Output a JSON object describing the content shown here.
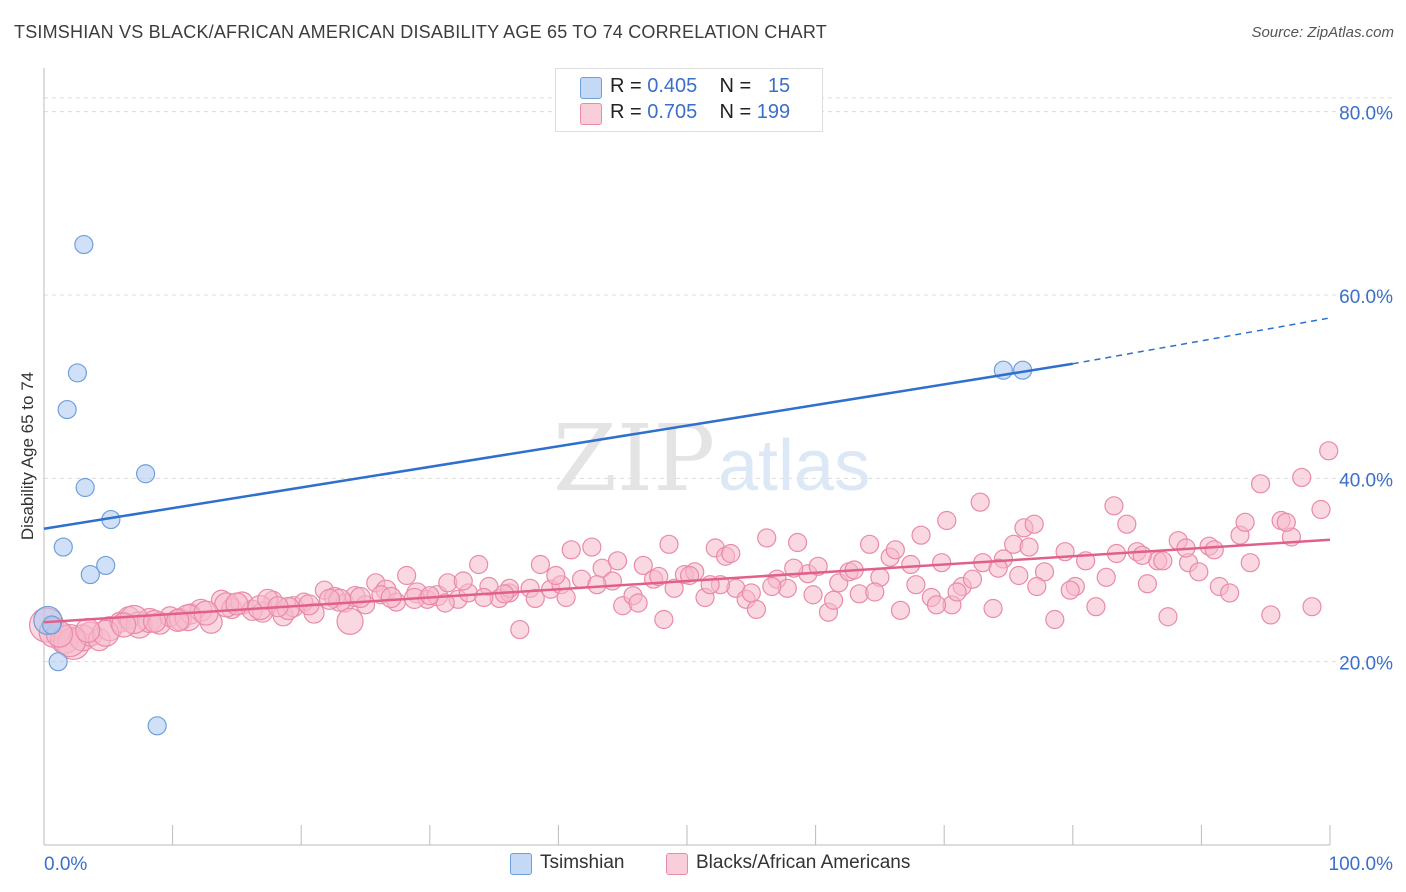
{
  "header": {
    "title": "TSIMSHIAN VS BLACK/AFRICAN AMERICAN DISABILITY AGE 65 TO 74 CORRELATION CHART",
    "source": "Source: ZipAtlas.com"
  },
  "watermark": {
    "zip": "ZIP",
    "atlas": "atlas"
  },
  "legend_top": {
    "rows": [
      {
        "r_label": "R =",
        "r_value": "0.405",
        "n_label": "N =",
        "n_value": "15",
        "color": "#a9c8f0"
      },
      {
        "r_label": "R =",
        "r_value": "0.705",
        "n_label": "N =",
        "n_value": "199",
        "color": "#f5b8cb"
      }
    ]
  },
  "chart_data": {
    "type": "scatter",
    "title": "TSIMSHIAN VS BLACK/AFRICAN AMERICAN DISABILITY AGE 65 TO 74 CORRELATION CHART",
    "xlabel": "",
    "ylabel": "Disability Age 65 to 74",
    "xlim": [
      0,
      100
    ],
    "ylim": [
      0,
      84
    ],
    "x_tick_labels": [
      "0.0%",
      "100.0%"
    ],
    "y_tick_labels": [
      "20.0%",
      "40.0%",
      "60.0%",
      "80.0%"
    ],
    "y_ticks": [
      20,
      40,
      60,
      80
    ],
    "grid": true,
    "legend_position": "bottom",
    "series": [
      {
        "name": "Tsimshian",
        "color": "#a9c8f0",
        "stroke": "#6f9fdb",
        "trend_color": "#2f6fce",
        "trend": {
          "x0": 0,
          "y0": 34.5,
          "x1": 80,
          "y1": 52.5,
          "dashed_to_x": 100,
          "dashed_to_y": 57.5
        },
        "points": [
          [
            0.3,
            24.5,
            14
          ],
          [
            3.1,
            65.5,
            9
          ],
          [
            2.6,
            51.5,
            9
          ],
          [
            1.8,
            47.5,
            9
          ],
          [
            3.2,
            39.0,
            9
          ],
          [
            7.9,
            40.5,
            9
          ],
          [
            5.2,
            35.5,
            9
          ],
          [
            1.5,
            32.5,
            9
          ],
          [
            4.8,
            30.5,
            9
          ],
          [
            3.6,
            29.5,
            9
          ],
          [
            1.1,
            20.0,
            9
          ],
          [
            8.8,
            13.0,
            9
          ],
          [
            74.6,
            51.8,
            9
          ],
          [
            76.1,
            51.8,
            9
          ],
          [
            0.6,
            24.0,
            9
          ]
        ]
      },
      {
        "name": "Blacks/African Americans",
        "color": "#f5b8cb",
        "stroke": "#e98aa8",
        "trend_color": "#e0608a",
        "trend": {
          "x0": 0,
          "y0": 24.3,
          "x1": 100,
          "y1": 33.3
        },
        "points": [
          [
            0.2,
            24.0,
            17
          ],
          [
            0.8,
            23.2,
            15
          ],
          [
            1.6,
            22.4,
            14
          ],
          [
            2.3,
            22.0,
            16
          ],
          [
            3.0,
            22.6,
            13
          ],
          [
            3.6,
            23.0,
            12
          ],
          [
            4.3,
            22.4,
            11
          ],
          [
            5.1,
            23.6,
            12
          ],
          [
            5.9,
            24.3,
            10
          ],
          [
            6.6,
            24.8,
            11
          ],
          [
            7.4,
            24.0,
            13
          ],
          [
            8.2,
            24.5,
            12
          ],
          [
            9.0,
            24.2,
            11
          ],
          [
            9.8,
            24.9,
            10
          ],
          [
            10.6,
            24.6,
            11
          ],
          [
            11.4,
            25.2,
            10
          ],
          [
            12.2,
            25.6,
            11
          ],
          [
            13.0,
            24.3,
            11
          ],
          [
            13.8,
            26.7,
            10
          ],
          [
            14.6,
            25.8,
            10
          ],
          [
            15.4,
            26.4,
            11
          ],
          [
            16.2,
            25.6,
            10
          ],
          [
            17.0,
            25.4,
            10
          ],
          [
            17.8,
            26.7,
            9
          ],
          [
            18.6,
            25.0,
            10
          ],
          [
            19.4,
            26.0,
            10
          ],
          [
            20.2,
            26.5,
            9
          ],
          [
            21.0,
            25.3,
            10
          ],
          [
            21.8,
            27.8,
            9
          ],
          [
            22.6,
            27.0,
            10
          ],
          [
            23.4,
            26.4,
            9
          ],
          [
            24.2,
            27.1,
            10
          ],
          [
            25.0,
            26.2,
            9
          ],
          [
            25.8,
            28.6,
            9
          ],
          [
            26.6,
            27.8,
            10
          ],
          [
            27.4,
            26.5,
            9
          ],
          [
            28.2,
            29.4,
            9
          ],
          [
            29.0,
            27.5,
            10
          ],
          [
            29.8,
            26.8,
            9
          ],
          [
            30.6,
            27.2,
            10
          ],
          [
            31.4,
            28.6,
            9
          ],
          [
            32.2,
            26.8,
            9
          ],
          [
            33.0,
            27.5,
            9
          ],
          [
            33.8,
            30.6,
            9
          ],
          [
            34.6,
            28.2,
            9
          ],
          [
            35.4,
            26.9,
            9
          ],
          [
            36.2,
            27.5,
            9
          ],
          [
            37.0,
            23.5,
            9
          ],
          [
            37.8,
            28.0,
            9
          ],
          [
            38.6,
            30.6,
            9
          ],
          [
            39.4,
            27.9,
            9
          ],
          [
            40.2,
            28.4,
            9
          ],
          [
            41.0,
            32.2,
            9
          ],
          [
            41.8,
            29.0,
            9
          ],
          [
            42.6,
            32.5,
            9
          ],
          [
            43.4,
            30.2,
            9
          ],
          [
            44.2,
            28.8,
            9
          ],
          [
            45.0,
            26.1,
            9
          ],
          [
            45.8,
            27.2,
            9
          ],
          [
            46.6,
            30.5,
            9
          ],
          [
            47.4,
            29.0,
            9
          ],
          [
            48.2,
            24.6,
            9
          ],
          [
            49.0,
            28.0,
            9
          ],
          [
            49.8,
            29.5,
            9
          ],
          [
            50.6,
            29.8,
            9
          ],
          [
            51.4,
            27.0,
            9
          ],
          [
            52.2,
            32.4,
            9
          ],
          [
            53.0,
            31.5,
            9
          ],
          [
            53.8,
            28.0,
            9
          ],
          [
            54.6,
            26.8,
            9
          ],
          [
            55.4,
            25.7,
            9
          ],
          [
            56.2,
            33.5,
            9
          ],
          [
            57.0,
            29.0,
            9
          ],
          [
            57.8,
            28.0,
            9
          ],
          [
            58.6,
            33.0,
            9
          ],
          [
            59.4,
            29.6,
            9
          ],
          [
            60.2,
            30.4,
            9
          ],
          [
            61.0,
            25.4,
            9
          ],
          [
            61.8,
            28.6,
            9
          ],
          [
            62.6,
            29.8,
            9
          ],
          [
            63.4,
            27.4,
            9
          ],
          [
            64.2,
            32.8,
            9
          ],
          [
            65.0,
            29.2,
            9
          ],
          [
            65.8,
            31.4,
            9
          ],
          [
            66.6,
            25.6,
            9
          ],
          [
            67.4,
            30.6,
            9
          ],
          [
            68.2,
            33.8,
            9
          ],
          [
            69.0,
            27.0,
            9
          ],
          [
            69.8,
            30.8,
            9
          ],
          [
            70.6,
            26.2,
            9
          ],
          [
            71.4,
            28.2,
            9
          ],
          [
            72.2,
            29.0,
            9
          ],
          [
            73.0,
            30.8,
            9
          ],
          [
            73.8,
            25.8,
            9
          ],
          [
            74.6,
            31.2,
            9
          ],
          [
            75.4,
            32.8,
            9
          ],
          [
            76.2,
            34.6,
            9
          ],
          [
            77.0,
            35.0,
            9
          ],
          [
            77.8,
            29.8,
            9
          ],
          [
            78.6,
            24.6,
            9
          ],
          [
            79.4,
            32.0,
            9
          ],
          [
            80.2,
            28.2,
            9
          ],
          [
            81.0,
            31.0,
            9
          ],
          [
            81.8,
            26.0,
            9
          ],
          [
            82.6,
            29.2,
            9
          ],
          [
            83.4,
            31.8,
            9
          ],
          [
            84.2,
            35.0,
            9
          ],
          [
            85.0,
            32.0,
            9
          ],
          [
            85.8,
            28.5,
            9
          ],
          [
            86.6,
            31.0,
            9
          ],
          [
            87.4,
            24.9,
            9
          ],
          [
            88.2,
            33.2,
            9
          ],
          [
            89.0,
            30.8,
            9
          ],
          [
            89.8,
            29.8,
            9
          ],
          [
            90.6,
            32.6,
            9
          ],
          [
            91.4,
            28.2,
            9
          ],
          [
            92.2,
            27.5,
            9
          ],
          [
            93.0,
            33.8,
            9
          ],
          [
            93.8,
            30.8,
            9
          ],
          [
            94.6,
            39.4,
            9
          ],
          [
            95.4,
            25.1,
            9
          ],
          [
            96.2,
            35.4,
            9
          ],
          [
            97.0,
            33.6,
            9
          ],
          [
            97.8,
            40.1,
            9
          ],
          [
            98.6,
            26.0,
            9
          ],
          [
            99.3,
            36.6,
            9
          ],
          [
            99.9,
            43.0,
            9
          ],
          [
            26.2,
            27.3,
            9
          ],
          [
            31.2,
            26.4,
            9
          ],
          [
            36.2,
            28.0,
            9
          ],
          [
            44.6,
            31.0,
            9
          ],
          [
            47.8,
            29.3,
            9
          ],
          [
            52.6,
            28.4,
            9
          ],
          [
            58.3,
            30.2,
            9
          ],
          [
            63.0,
            30.0,
            9
          ],
          [
            66.2,
            32.2,
            9
          ],
          [
            70.2,
            35.4,
            9
          ],
          [
            72.8,
            37.4,
            9
          ],
          [
            75.8,
            29.4,
            9
          ],
          [
            77.2,
            28.2,
            9
          ],
          [
            79.8,
            27.8,
            9
          ],
          [
            83.2,
            37.0,
            9
          ],
          [
            85.4,
            31.6,
            9
          ],
          [
            87.0,
            31.0,
            9
          ],
          [
            88.8,
            32.4,
            9
          ],
          [
            91.0,
            32.2,
            9
          ],
          [
            93.4,
            35.2,
            9
          ],
          [
            96.6,
            35.2,
            9
          ],
          [
            14.2,
            26.2,
            12
          ],
          [
            16.8,
            25.9,
            12
          ],
          [
            19.0,
            25.8,
            11
          ],
          [
            23.0,
            26.7,
            11
          ],
          [
            7.0,
            24.6,
            14
          ],
          [
            11.2,
            24.8,
            13
          ],
          [
            4.8,
            23.1,
            13
          ],
          [
            2.0,
            22.3,
            16
          ],
          [
            1.2,
            23.0,
            13
          ],
          [
            3.4,
            23.4,
            12
          ],
          [
            6.2,
            24.0,
            12
          ],
          [
            8.6,
            24.4,
            11
          ],
          [
            10.4,
            24.5,
            11
          ],
          [
            12.6,
            25.3,
            12
          ],
          [
            15.0,
            26.3,
            11
          ],
          [
            17.4,
            26.8,
            10
          ],
          [
            18.2,
            26.0,
            10
          ],
          [
            20.6,
            26.2,
            10
          ],
          [
            22.2,
            26.8,
            10
          ],
          [
            23.8,
            24.4,
            13
          ],
          [
            24.6,
            27.0,
            10
          ],
          [
            27.0,
            27.0,
            10
          ],
          [
            28.8,
            26.9,
            10
          ],
          [
            30.0,
            27.2,
            9
          ],
          [
            32.6,
            28.8,
            9
          ],
          [
            34.2,
            27.0,
            9
          ],
          [
            35.8,
            27.4,
            9
          ],
          [
            38.2,
            26.9,
            9
          ],
          [
            39.8,
            29.4,
            9
          ],
          [
            40.6,
            27.0,
            9
          ],
          [
            43.0,
            28.4,
            9
          ],
          [
            46.2,
            26.4,
            9
          ],
          [
            48.6,
            32.8,
            9
          ],
          [
            50.2,
            29.4,
            9
          ],
          [
            51.8,
            28.4,
            9
          ],
          [
            53.4,
            31.8,
            9
          ],
          [
            55.0,
            27.5,
            9
          ],
          [
            56.6,
            28.2,
            9
          ],
          [
            59.8,
            27.3,
            9
          ],
          [
            61.4,
            26.7,
            9
          ],
          [
            64.6,
            27.6,
            9
          ],
          [
            67.8,
            28.4,
            9
          ],
          [
            69.4,
            26.2,
            9
          ],
          [
            71.0,
            27.6,
            9
          ],
          [
            74.2,
            30.2,
            9
          ],
          [
            76.6,
            32.5,
            9
          ]
        ]
      }
    ]
  }
}
